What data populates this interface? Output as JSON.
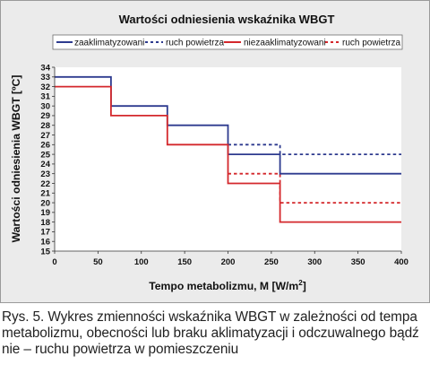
{
  "chart_data": {
    "type": "line",
    "title": "Wartości odniesienia wskaźnika WBGT",
    "xlabel": "Tempo metabolizmu, M [W/m²]",
    "ylabel": "Wartości odniesienia WBGT [ºC]",
    "xlim": [
      0,
      400
    ],
    "ylim": [
      15,
      34
    ],
    "x_ticks": [
      0,
      50,
      100,
      150,
      200,
      250,
      300,
      350,
      400
    ],
    "y_ticks": [
      15,
      16,
      17,
      18,
      19,
      20,
      21,
      22,
      23,
      24,
      25,
      26,
      27,
      28,
      29,
      30,
      31,
      32,
      33,
      34
    ],
    "grid": false,
    "legend_position": "top",
    "colors": {
      "blue": "#2e3b8f",
      "red": "#d4282c"
    },
    "series": [
      {
        "name": "zaaklimatyzowani",
        "color": "#2e3b8f",
        "style": "solid",
        "x": [
          0,
          65,
          65,
          130,
          130,
          200,
          200,
          260,
          260,
          400
        ],
        "y": [
          33,
          33,
          30,
          30,
          28,
          28,
          25,
          25,
          23,
          23
        ]
      },
      {
        "name": "ruch powietrza",
        "color": "#2e3b8f",
        "style": "dashed",
        "x": [
          200,
          260,
          260,
          400
        ],
        "y": [
          26,
          26,
          25,
          25
        ]
      },
      {
        "name": "niezaaklimatyzowani",
        "color": "#d4282c",
        "style": "solid",
        "x": [
          0,
          65,
          65,
          130,
          130,
          200,
          200,
          260,
          260,
          400
        ],
        "y": [
          32,
          32,
          29,
          29,
          26,
          26,
          22,
          22,
          18,
          18
        ]
      },
      {
        "name": "ruch powietrza",
        "color": "#d4282c",
        "style": "dashed",
        "x": [
          200,
          260,
          260,
          400
        ],
        "y": [
          23,
          23,
          20,
          20
        ]
      }
    ]
  },
  "caption": "Rys. 5. Wykres zmienności wskaźnika WBGT w zależności od tempa metabolizmu, obecności lub braku aklimatyzacji i odczuwalnego bądź nie – ruchu powietrza w pomieszczeniu"
}
